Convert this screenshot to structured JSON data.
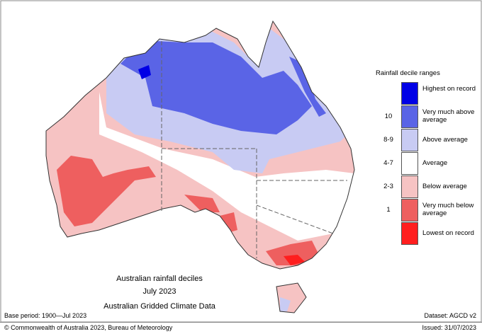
{
  "map": {
    "title_lines": [
      "Australian rainfall deciles",
      "July 2023",
      "Australian Gridded Climate Data"
    ]
  },
  "legend": {
    "title": "Rainfall decile ranges",
    "items": [
      {
        "label": "Highest on record",
        "color": "#0000e6"
      },
      {
        "range": "10",
        "label": "Very much above average",
        "color": "#5a64e6"
      },
      {
        "range": "8-9",
        "label": "Above average",
        "color": "#c8cbf3"
      },
      {
        "range": "4-7",
        "label": "Average",
        "color": "#ffffff"
      },
      {
        "range": "2-3",
        "label": "Below average",
        "color": "#f6c3c3"
      },
      {
        "range": "1",
        "label": "Very much below average",
        "color": "#ee5f5f"
      },
      {
        "label": "Lowest on record",
        "color": "#ff1e1e"
      }
    ]
  },
  "footer": {
    "base_period": "Base period: 1900—Jul 2023",
    "dataset": "Dataset: AGCD v2",
    "copyright": "© Commonwealth of Australia 2023, Bureau of Meteorology",
    "issued": "Issued: 31/07/2023"
  }
}
